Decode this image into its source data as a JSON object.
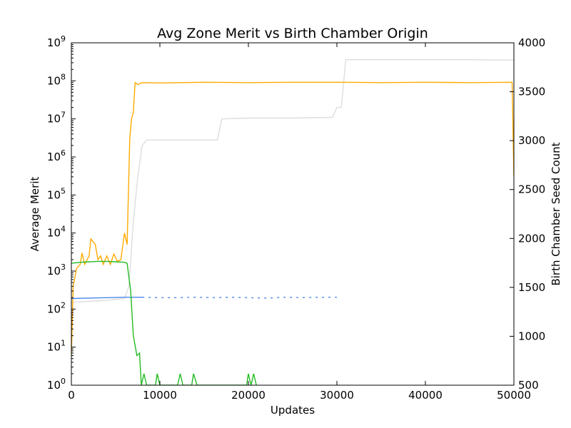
{
  "chart_data": {
    "type": "line",
    "title": "Avg Zone Merit vs Birth Chamber Origin",
    "xlabel": "Updates",
    "ylabel_left": "Average Merit",
    "ylabel_right": "Birth Chamber Seed Count",
    "xlim": [
      0,
      50000
    ],
    "ylim_left": [
      1,
      1000000000
    ],
    "ylim_right": [
      500,
      4000
    ],
    "left_scale": "log",
    "grid": false,
    "x_ticks": [
      "0",
      "10000",
      "20000",
      "30000",
      "40000",
      "50000"
    ],
    "x_tick_values": [
      0,
      10000,
      20000,
      30000,
      40000,
      50000
    ],
    "left_ticks": [
      {
        "base": "10",
        "exp": "0"
      },
      {
        "base": "10",
        "exp": "1"
      },
      {
        "base": "10",
        "exp": "2"
      },
      {
        "base": "10",
        "exp": "3"
      },
      {
        "base": "10",
        "exp": "4"
      },
      {
        "base": "10",
        "exp": "5"
      },
      {
        "base": "10",
        "exp": "6"
      },
      {
        "base": "10",
        "exp": "7"
      },
      {
        "base": "10",
        "exp": "8"
      },
      {
        "base": "10",
        "exp": "9"
      }
    ],
    "right_ticks": [
      "500",
      "1000",
      "1500",
      "2000",
      "2500",
      "3000",
      "3500",
      "4000"
    ],
    "right_tick_values": [
      500,
      1000,
      1500,
      2000,
      2500,
      3000,
      3500,
      4000
    ],
    "series": [
      {
        "axis": "left",
        "color": "#dddddd",
        "points": [
          [
            0,
            150
          ],
          [
            2000,
            160
          ],
          [
            4000,
            170
          ],
          [
            6000,
            190
          ],
          [
            6500,
            400
          ],
          [
            7000,
            20000
          ],
          [
            7500,
            300000
          ],
          [
            8000,
            2000000
          ],
          [
            8500,
            2800000
          ],
          [
            10000,
            2800000
          ],
          [
            14000,
            2800000
          ],
          [
            16500,
            2800000
          ],
          [
            17000,
            10000000
          ],
          [
            20000,
            10500000
          ],
          [
            25000,
            10500000
          ],
          [
            29500,
            11000000
          ],
          [
            30000,
            20000000
          ],
          [
            30500,
            20000000
          ],
          [
            31000,
            360000000
          ],
          [
            35000,
            360000000
          ],
          [
            40000,
            360000000
          ],
          [
            45000,
            360000000
          ],
          [
            50000,
            350000000
          ]
        ]
      },
      {
        "axis": "left",
        "color": "#ffaa00",
        "points": [
          [
            0,
            6
          ],
          [
            200,
            400
          ],
          [
            600,
            1200
          ],
          [
            1000,
            1500
          ],
          [
            1200,
            3000
          ],
          [
            1500,
            1500
          ],
          [
            2000,
            2500
          ],
          [
            2200,
            7000
          ],
          [
            2700,
            5000
          ],
          [
            3000,
            2000
          ],
          [
            3300,
            2500
          ],
          [
            3600,
            1500
          ],
          [
            4000,
            2500
          ],
          [
            4400,
            1500
          ],
          [
            4800,
            2800
          ],
          [
            5200,
            1800
          ],
          [
            5600,
            2000
          ],
          [
            6000,
            10000
          ],
          [
            6300,
            5000
          ],
          [
            6600,
            3000000
          ],
          [
            6800,
            10000000
          ],
          [
            7000,
            15000000
          ],
          [
            7200,
            90000000
          ],
          [
            7500,
            80000000
          ],
          [
            8000,
            90000000
          ],
          [
            10000,
            88000000
          ],
          [
            15000,
            92000000
          ],
          [
            20000,
            90000000
          ],
          [
            25000,
            92000000
          ],
          [
            30000,
            92000000
          ],
          [
            35000,
            90000000
          ],
          [
            40000,
            92000000
          ],
          [
            45000,
            90000000
          ],
          [
            49800,
            92000000
          ],
          [
            50000,
            300000
          ]
        ]
      },
      {
        "axis": "left",
        "color": "#4a88e8",
        "points": [
          [
            0,
            190
          ],
          [
            2000,
            195
          ],
          [
            4000,
            200
          ],
          [
            6000,
            205
          ],
          [
            7000,
            205
          ],
          [
            8000,
            205
          ]
        ]
      },
      {
        "axis": "left",
        "color": "#4a88e8",
        "dashed": true,
        "points": [
          [
            8000,
            205
          ],
          [
            10000,
            200
          ],
          [
            12000,
            200
          ],
          [
            14000,
            205
          ],
          [
            16000,
            200
          ],
          [
            18000,
            205
          ],
          [
            20000,
            200
          ],
          [
            22000,
            195
          ],
          [
            24500,
            205
          ],
          [
            26000,
            200
          ],
          [
            28000,
            205
          ],
          [
            30000,
            205
          ]
        ]
      },
      {
        "axis": "left",
        "color": "#22bb22",
        "points": [
          [
            0,
            1600
          ],
          [
            1000,
            1700
          ],
          [
            2000,
            1750
          ],
          [
            3000,
            1800
          ],
          [
            4000,
            1800
          ],
          [
            5000,
            1750
          ],
          [
            6000,
            1700
          ],
          [
            6300,
            1600
          ],
          [
            6700,
            300
          ],
          [
            7000,
            20
          ],
          [
            7400,
            6
          ],
          [
            7700,
            7
          ],
          [
            7900,
            1
          ],
          [
            8200,
            2
          ],
          [
            8500,
            1
          ],
          [
            9500,
            1
          ],
          [
            9700,
            2
          ],
          [
            10000,
            1
          ],
          [
            12000,
            1
          ],
          [
            12300,
            2
          ],
          [
            12600,
            1
          ],
          [
            13600,
            1
          ],
          [
            13800,
            2
          ],
          [
            14200,
            1
          ],
          [
            16000,
            1
          ],
          [
            19800,
            1
          ],
          [
            20000,
            2
          ],
          [
            20300,
            1
          ],
          [
            20600,
            2
          ],
          [
            20900,
            1
          ]
        ]
      }
    ]
  }
}
